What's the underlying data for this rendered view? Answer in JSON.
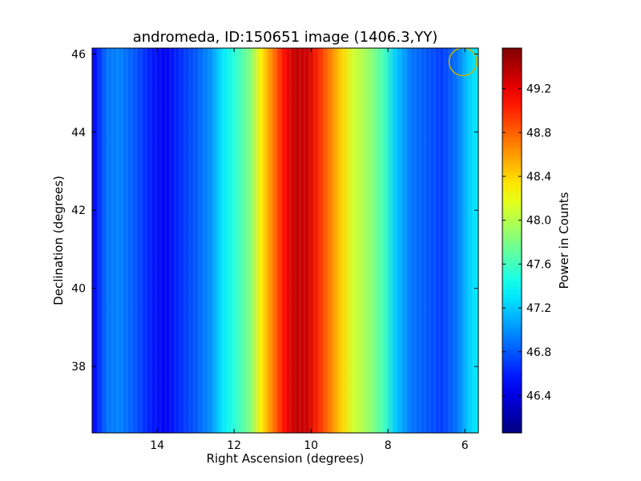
{
  "chart_data": {
    "type": "heatmap",
    "title": "andromeda, ID:150651 image (1406.3,YY)",
    "xlabel": "Right Ascension (degrees)",
    "ylabel": "Declination (degrees)",
    "xlim": [
      15.69,
      5.65
    ],
    "ylim": [
      36.3,
      46.15
    ],
    "xticks": [
      "14",
      "12",
      "10",
      "8",
      "6"
    ],
    "xtick_values": [
      14,
      12,
      10,
      8,
      6
    ],
    "yticks": [
      "38",
      "40",
      "42",
      "44",
      "46"
    ],
    "ytick_values": [
      38,
      40,
      42,
      44,
      46
    ],
    "colormap": "jet",
    "colorbar": {
      "label": "Power in Counts",
      "range": [
        46.06,
        49.57
      ],
      "ticks": [
        "46.4",
        "46.8",
        "47.2",
        "47.6",
        "48.0",
        "48.4",
        "48.8",
        "49.2"
      ],
      "tick_values": [
        46.4,
        46.8,
        47.2,
        47.6,
        48.0,
        48.4,
        48.8,
        49.2
      ]
    },
    "column_profile": {
      "ra": [
        15.65,
        15.3,
        15.0,
        14.6,
        14.2,
        13.8,
        13.4,
        13.0,
        12.6,
        12.3,
        12.0,
        11.6,
        11.3,
        11.0,
        10.7,
        10.4,
        10.1,
        9.8,
        9.5,
        9.2,
        8.9,
        8.5,
        8.1,
        7.8,
        7.4,
        7.0,
        6.6,
        6.2,
        5.9,
        5.7
      ],
      "power": [
        46.5,
        46.9,
        46.95,
        46.8,
        46.6,
        46.45,
        46.65,
        46.8,
        47.0,
        47.3,
        47.5,
        47.8,
        48.3,
        48.7,
        49.1,
        49.35,
        49.3,
        49.0,
        48.7,
        48.4,
        48.1,
        47.9,
        47.6,
        47.2,
        46.9,
        46.8,
        46.7,
        46.9,
        47.2,
        47.3
      ]
    },
    "annotations": [
      {
        "type": "circle",
        "ra": 6.05,
        "dec": 45.8,
        "radius_deg": 0.36,
        "color": "#c8b400"
      }
    ]
  }
}
